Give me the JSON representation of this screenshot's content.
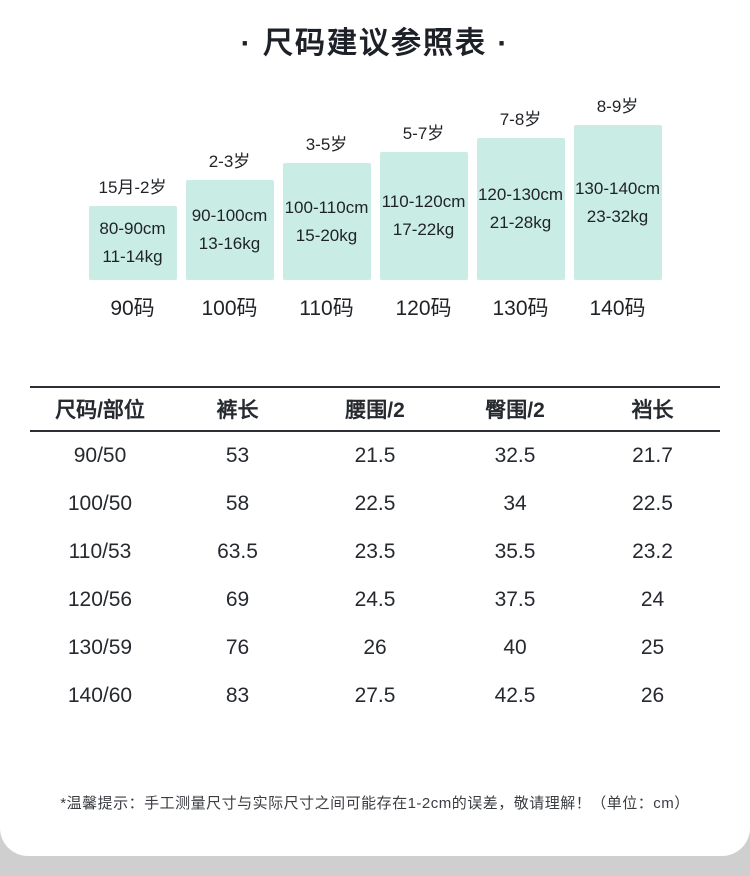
{
  "title": "· 尺码建议参照表 ·",
  "chart_data": {
    "type": "bar",
    "title": "尺码建议参照表",
    "categories": [
      "90码",
      "100码",
      "110码",
      "120码",
      "130码",
      "140码"
    ],
    "bars": [
      {
        "age": "15月-2岁",
        "height": "80-90cm",
        "weight": "11-14kg",
        "size": "90码"
      },
      {
        "age": "2-3岁",
        "height": "90-100cm",
        "weight": "13-16kg",
        "size": "100码"
      },
      {
        "age": "3-5岁",
        "height": "100-110cm",
        "weight": "15-20kg",
        "size": "110码"
      },
      {
        "age": "5-7岁",
        "height": "110-120cm",
        "weight": "17-22kg",
        "size": "120码"
      },
      {
        "age": "7-8岁",
        "height": "120-130cm",
        "weight": "21-28kg",
        "size": "130码"
      },
      {
        "age": "8-9岁",
        "height": "130-140cm",
        "weight": "23-32kg",
        "size": "140码"
      }
    ]
  },
  "size_table": {
    "headers": [
      "尺码/部位",
      "裤长",
      "腰围/2",
      "臀围/2",
      "裆长"
    ],
    "rows": [
      [
        "90/50",
        "53",
        "21.5",
        "32.5",
        "21.7"
      ],
      [
        "100/50",
        "58",
        "22.5",
        "34",
        "22.5"
      ],
      [
        "110/53",
        "63.5",
        "23.5",
        "35.5",
        "23.2"
      ],
      [
        "120/56",
        "69",
        "24.5",
        "37.5",
        "24"
      ],
      [
        "130/59",
        "76",
        "26",
        "40",
        "25"
      ],
      [
        "140/60",
        "83",
        "27.5",
        "42.5",
        "26"
      ]
    ]
  },
  "footer_note": "*温馨提示：手工测量尺寸与实际尺寸之间可能存在1-2cm的误差，敬请理解！（单位：cm）",
  "colors": {
    "bar_fill": "#c9ece5",
    "text": "#1f2226",
    "background": "#ffffff"
  }
}
